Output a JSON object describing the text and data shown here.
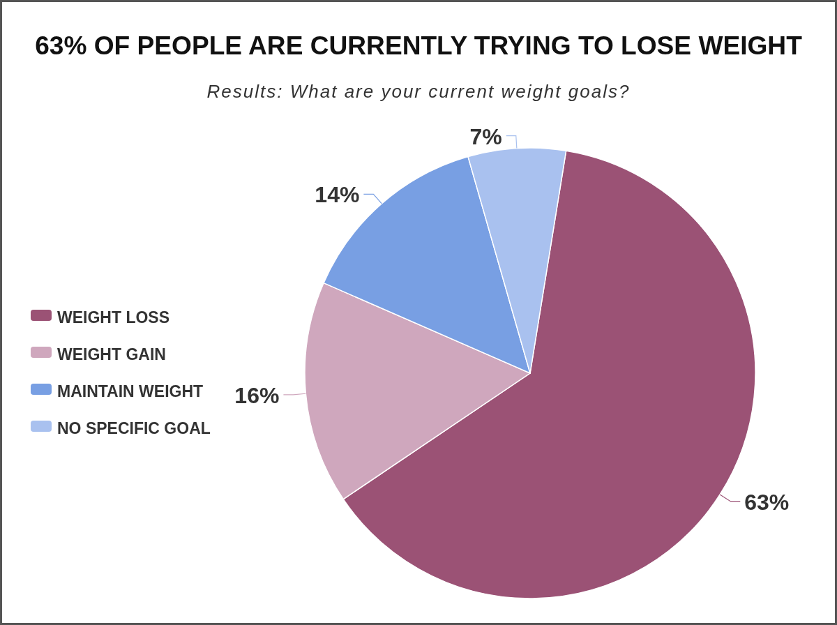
{
  "chart_data": {
    "type": "pie",
    "title": "63% OF PEOPLE ARE CURRENTLY TRYING TO LOSE WEIGHT",
    "subtitle": "Results: What are your current weight goals?",
    "categories": [
      "WEIGHT LOSS",
      "WEIGHT GAIN",
      "MAINTAIN WEIGHT",
      "NO SPECIFIC GOAL"
    ],
    "values": [
      63,
      16,
      14,
      7
    ],
    "colors": [
      "#9b5275",
      "#cfa7bd",
      "#789fe3",
      "#a9c1ef"
    ],
    "value_labels": [
      "63%",
      "16%",
      "14%",
      "7%"
    ],
    "legend": "left"
  }
}
